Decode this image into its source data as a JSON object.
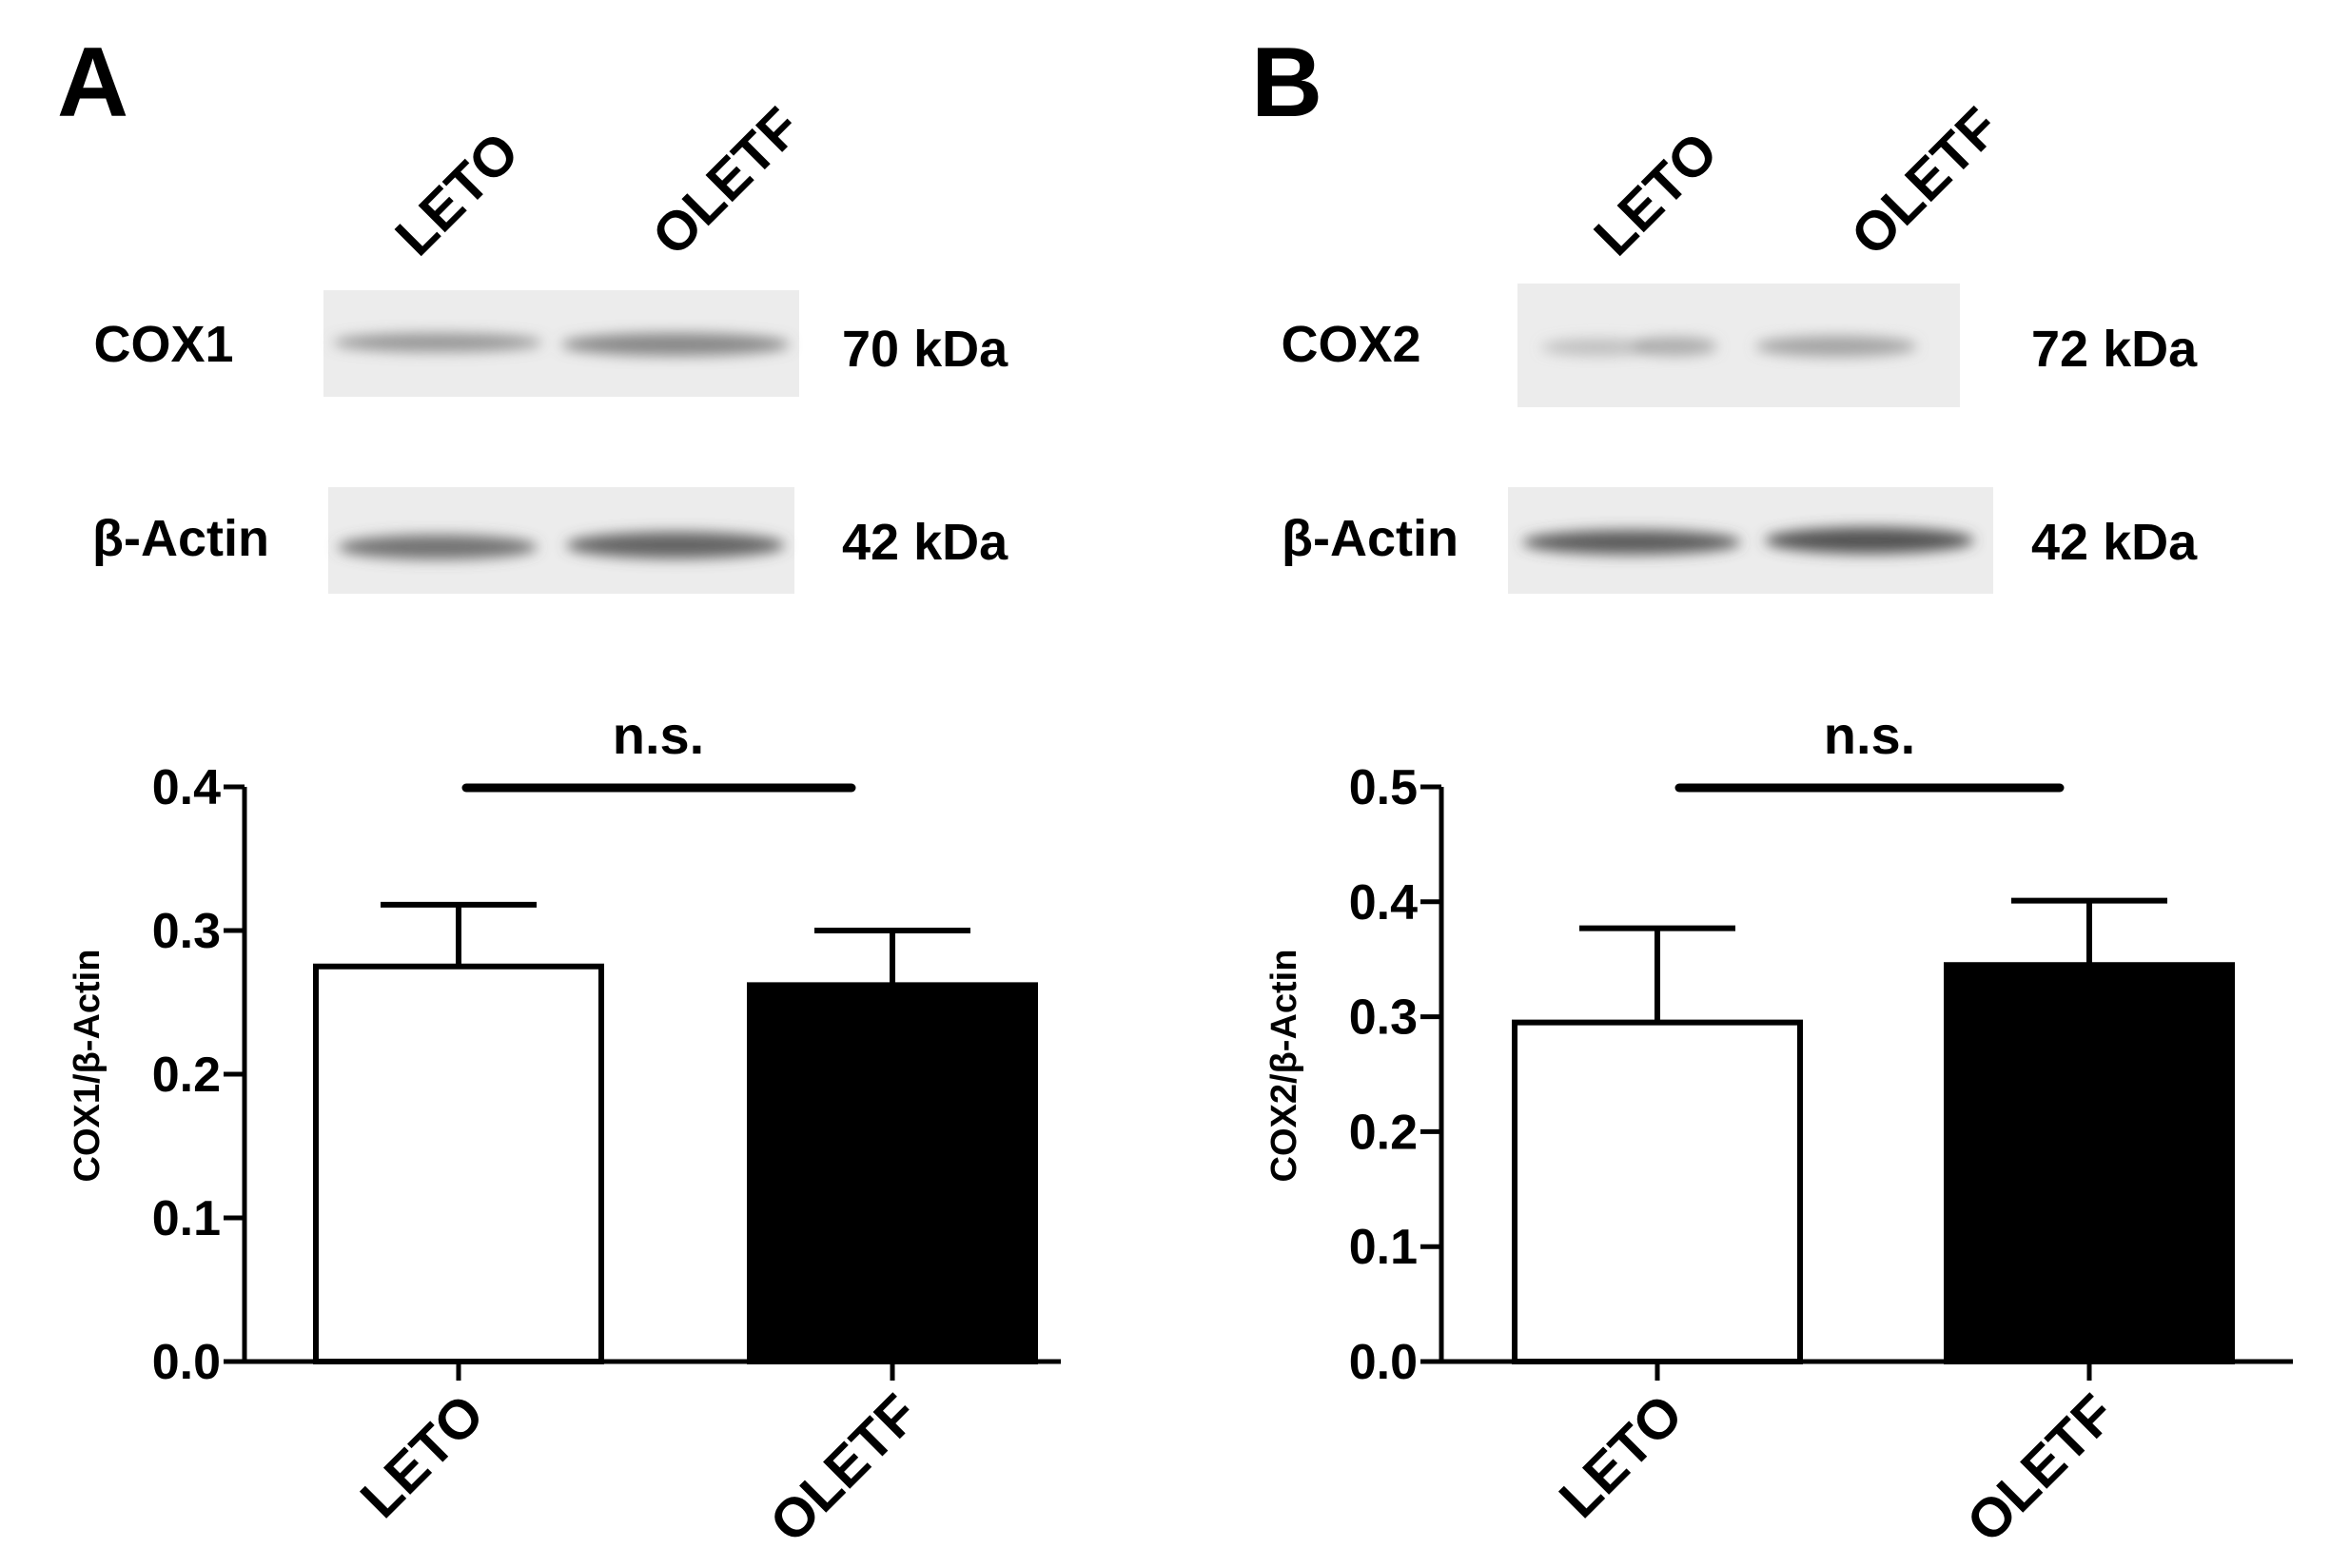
{
  "panels": [
    {
      "letter": "A",
      "lane_labels": [
        "LETO",
        "OLETF"
      ],
      "blots": [
        {
          "protein": "COX1",
          "size": "70 kDa"
        },
        {
          "protein": "β-Actin",
          "size": "42 kDa"
        }
      ],
      "significance": "n.s."
    },
    {
      "letter": "B",
      "lane_labels": [
        "LETO",
        "OLETF"
      ],
      "blots": [
        {
          "protein": "COX2",
          "size": "72 kDa"
        },
        {
          "protein": "β-Actin",
          "size": "42 kDa"
        }
      ],
      "significance": "n.s."
    }
  ],
  "chart_data": [
    {
      "type": "bar",
      "panel": "A",
      "categories": [
        "LETO",
        "OLETF"
      ],
      "series": [
        {
          "values": [
            0.275,
            0.262
          ],
          "errors": [
            0.043,
            0.038
          ],
          "colors": [
            "#ffffff",
            "#000000"
          ]
        }
      ],
      "xlabel": "",
      "ylabel": "COX1/β-Actin",
      "ylim": [
        0,
        0.4
      ],
      "yticks": [
        0.0,
        0.1,
        0.2,
        0.3,
        0.4
      ],
      "ytick_labels": [
        "0.0",
        "0.1",
        "0.2",
        "0.3",
        "0.4"
      ],
      "annotation": "n.s.",
      "grid": false
    },
    {
      "type": "bar",
      "panel": "B",
      "categories": [
        "LETO",
        "OLETF"
      ],
      "series": [
        {
          "values": [
            0.295,
            0.345
          ],
          "errors": [
            0.082,
            0.056
          ],
          "colors": [
            "#ffffff",
            "#000000"
          ]
        }
      ],
      "xlabel": "",
      "ylabel": "COX2/β-Actin",
      "ylim": [
        0,
        0.5
      ],
      "yticks": [
        0.0,
        0.1,
        0.2,
        0.3,
        0.4,
        0.5
      ],
      "ytick_labels": [
        "0.0",
        "0.1",
        "0.2",
        "0.3",
        "0.4",
        "0.5"
      ],
      "annotation": "n.s.",
      "grid": false
    }
  ]
}
